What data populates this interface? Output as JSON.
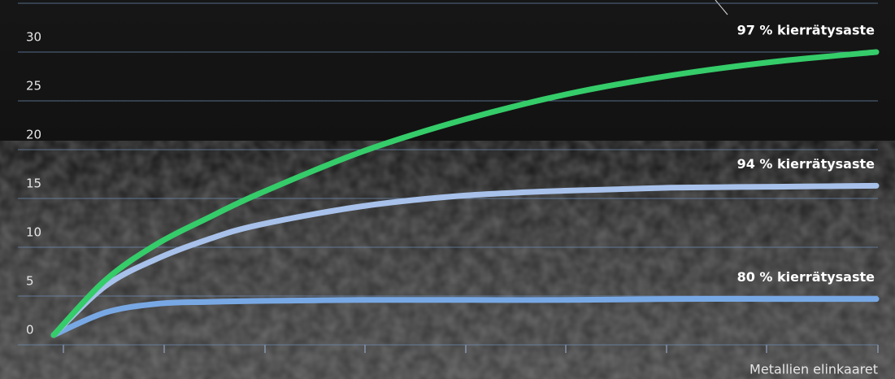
{
  "chart_data": {
    "type": "line",
    "x_label": "Metallien elinkaaret",
    "x": [
      0,
      0.5,
      1,
      1.5,
      2,
      3,
      4,
      5,
      6,
      7,
      8
    ],
    "xlim": [
      0,
      8
    ],
    "ylim": [
      0,
      35
    ],
    "yticks": [
      0,
      5,
      10,
      15,
      20,
      25,
      30,
      35
    ],
    "grid": true,
    "series": [
      {
        "name": "97 % kierrätysaste",
        "color": "#35cc6a",
        "values": [
          1,
          6.6,
          10.3,
          13,
          15.5,
          19.8,
          23.1,
          25.7,
          27.6,
          29,
          30
        ]
      },
      {
        "name": "94 % kierrätysaste",
        "color": "#a7c1ea",
        "values": [
          1,
          6,
          8.8,
          10.8,
          12.3,
          14.2,
          15.3,
          15.8,
          16.1,
          16.2,
          16.3
        ]
      },
      {
        "name": "80 % kierrätysaste",
        "color": "#78a8e4",
        "values": [
          1,
          3.3,
          4.2,
          4.4,
          4.5,
          4.6,
          4.6,
          4.6,
          4.7,
          4.7,
          4.7
        ]
      }
    ]
  }
}
